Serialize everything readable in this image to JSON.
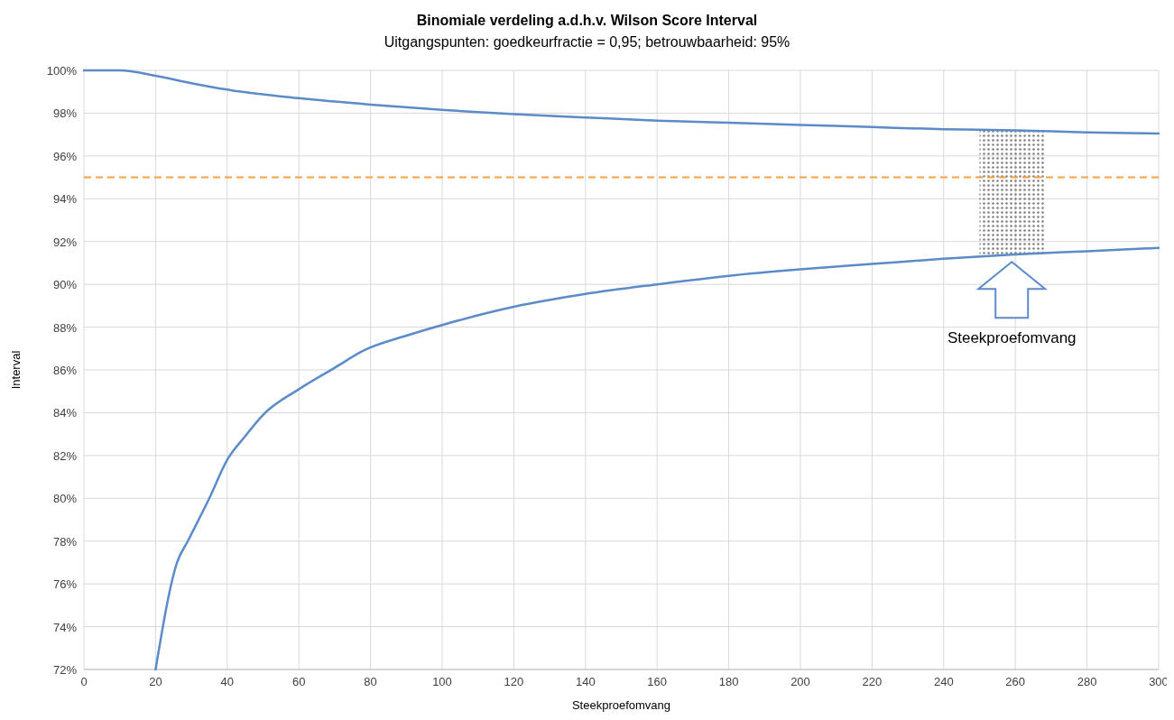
{
  "chart_data": {
    "type": "line",
    "title": "Binomiale verdeling a.d.h.v. Wilson Score Interval",
    "subtitle": "Uitgangspunten: goedkeurfractie = 0,95; betrouwbaarheid: 95%",
    "xlabel": "Steekproefomvang",
    "ylabel": "Interval",
    "series": [
      {
        "color": "#5b8bc9",
        "x": [
          0,
          10,
          20,
          30,
          40,
          60,
          80,
          100,
          120,
          140,
          160,
          180,
          200,
          220,
          240,
          260,
          280,
          300
        ],
        "values": [
          100,
          100,
          99.75,
          99.4,
          99.1,
          98.7,
          98.4,
          98.15,
          97.95,
          97.8,
          97.65,
          97.55,
          97.45,
          97.35,
          97.25,
          97.2,
          97.1,
          97.05
        ]
      },
      {
        "color": "#5b8bc9",
        "x": [
          20,
          26,
          29,
          35,
          40,
          45,
          50,
          60,
          70,
          78,
          90,
          100,
          120,
          140,
          160,
          180,
          200,
          220,
          240,
          260,
          280,
          300
        ],
        "values": [
          72,
          77,
          78,
          80,
          81.8,
          82.9,
          83.9,
          85.1,
          86.1,
          86.9,
          87.6,
          88.1,
          88.95,
          89.55,
          90.0,
          90.4,
          90.7,
          90.95,
          91.2,
          91.4,
          91.55,
          91.7
        ]
      }
    ],
    "xlim": [
      0,
      300
    ],
    "xticks": [
      0,
      20,
      40,
      60,
      80,
      100,
      120,
      140,
      160,
      180,
      200,
      220,
      240,
      260,
      280,
      300
    ],
    "ylim": [
      72,
      100
    ],
    "yticks": [
      {
        "value": 72,
        "label": "72%"
      },
      {
        "value": 74,
        "label": "74%"
      },
      {
        "value": 76,
        "label": "76%"
      },
      {
        "value": 78,
        "label": "78%"
      },
      {
        "value": 80,
        "label": "80%"
      },
      {
        "value": 82,
        "label": "82%"
      },
      {
        "value": 84,
        "label": "84%"
      },
      {
        "value": 86,
        "label": "86%"
      },
      {
        "value": 88,
        "label": "88%"
      },
      {
        "value": 90,
        "label": "90%"
      },
      {
        "value": 92,
        "label": "92%"
      },
      {
        "value": 94,
        "label": "94%"
      },
      {
        "value": 96,
        "label": "96%"
      },
      {
        "value": 98,
        "label": "98%"
      },
      {
        "value": 100,
        "label": "100%"
      }
    ],
    "grid": true,
    "line_style": "solid",
    "ref_lines": [
      {
        "axis": "y",
        "value": 95,
        "color": "#f4a245",
        "line_style": "dashed"
      }
    ],
    "bands": [
      {
        "axis": "x",
        "from": 250,
        "to": 268,
        "color": "#808080"
      }
    ],
    "annotations": [
      "Steekproefomvang"
    ]
  }
}
